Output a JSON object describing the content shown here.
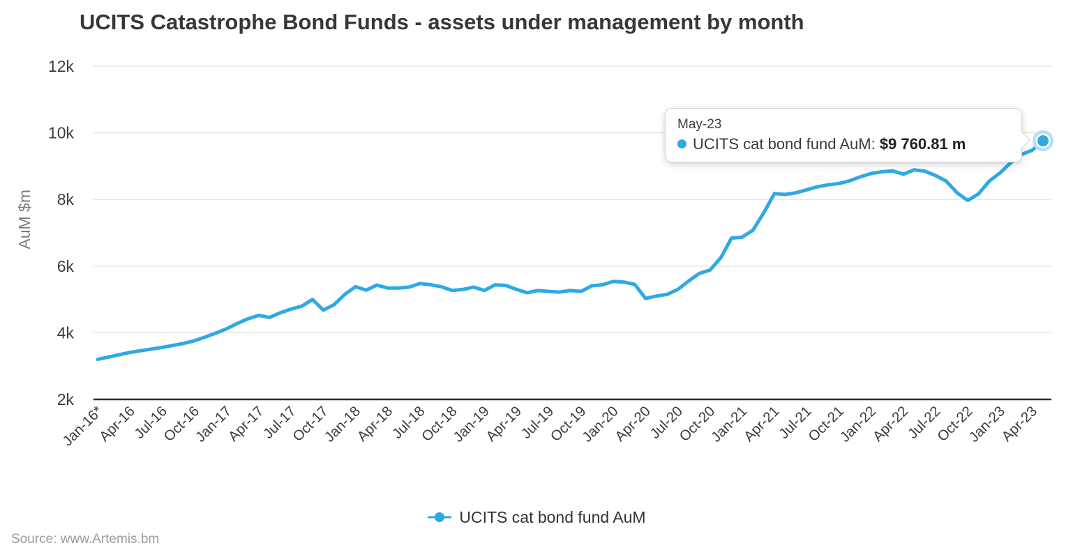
{
  "title": "UCITS Catastrophe Bond Funds - assets under management by month",
  "y_axis": {
    "title": "AuM $m"
  },
  "tooltip": {
    "date": "May-23",
    "series_label": "UCITS cat bond fund AuM: ",
    "value": "$9 760.81 m"
  },
  "legend": {
    "label": "UCITS cat bond fund AuM"
  },
  "source": "Source: www.Artemis.bm",
  "colors": {
    "line": "#2fa9e4",
    "marker_halo": "#b5dff6",
    "marker_ring": "#ffffff",
    "grid": "#e4e4e4",
    "axis": "#2d2d2d",
    "tick_text": "#3c3c3c",
    "axis_title_text": "#7c7c7c"
  },
  "chart_data": {
    "type": "line",
    "title": "UCITS Catastrophe Bond Funds - assets under management by month",
    "xlabel": "",
    "ylabel": "AuM $m",
    "ylim": [
      2000,
      12000
    ],
    "grid": true,
    "legend_position": "bottom",
    "yticks": [
      {
        "value": 12000,
        "label": "12k"
      },
      {
        "value": 10000,
        "label": "10k"
      },
      {
        "value": 8000,
        "label": "8k"
      },
      {
        "value": 6000,
        "label": "6k"
      },
      {
        "value": 4000,
        "label": "4k"
      },
      {
        "value": 2000,
        "label": "2k"
      }
    ],
    "x_tick_labels": [
      "Jan-16*",
      "Apr-16",
      "Jul-16",
      "Oct-16",
      "Jan-17",
      "Apr-17",
      "Jul-17",
      "Oct-17",
      "Jan-18",
      "Apr-18",
      "Jul-18",
      "Oct-18",
      "Jan-19",
      "Apr-19",
      "Jul-19",
      "Oct-19",
      "Jan-20",
      "Apr-20",
      "Jul-20",
      "Oct-20",
      "Jan-21",
      "Apr-21",
      "Jul-21",
      "Oct-21",
      "Jan-22",
      "Apr-22",
      "Jul-22",
      "Oct-22",
      "Jan-23",
      "Apr-23"
    ],
    "x_tick_every_n_months": 3,
    "start_month": "Jan-16",
    "end_month": "May-23",
    "highlight_point": {
      "month": "May-23",
      "value": 9760.81
    },
    "series": [
      {
        "name": "UCITS cat bond fund AuM",
        "unit": "$m",
        "values": [
          3200,
          3270,
          3340,
          3410,
          3460,
          3510,
          3560,
          3620,
          3680,
          3760,
          3870,
          3990,
          4120,
          4280,
          4420,
          4520,
          4460,
          4600,
          4710,
          4800,
          5000,
          4680,
          4840,
          5150,
          5380,
          5280,
          5430,
          5340,
          5340,
          5370,
          5480,
          5440,
          5380,
          5270,
          5300,
          5370,
          5270,
          5440,
          5420,
          5300,
          5200,
          5270,
          5240,
          5220,
          5270,
          5240,
          5410,
          5440,
          5540,
          5520,
          5450,
          5030,
          5100,
          5150,
          5300,
          5550,
          5780,
          5880,
          6250,
          6840,
          6870,
          7080,
          7600,
          8180,
          8150,
          8200,
          8290,
          8380,
          8440,
          8480,
          8560,
          8680,
          8780,
          8830,
          8860,
          8760,
          8890,
          8850,
          8720,
          8550,
          8200,
          7970,
          8170,
          8550,
          8800,
          9100,
          9350,
          9480,
          9760.81
        ]
      }
    ]
  }
}
